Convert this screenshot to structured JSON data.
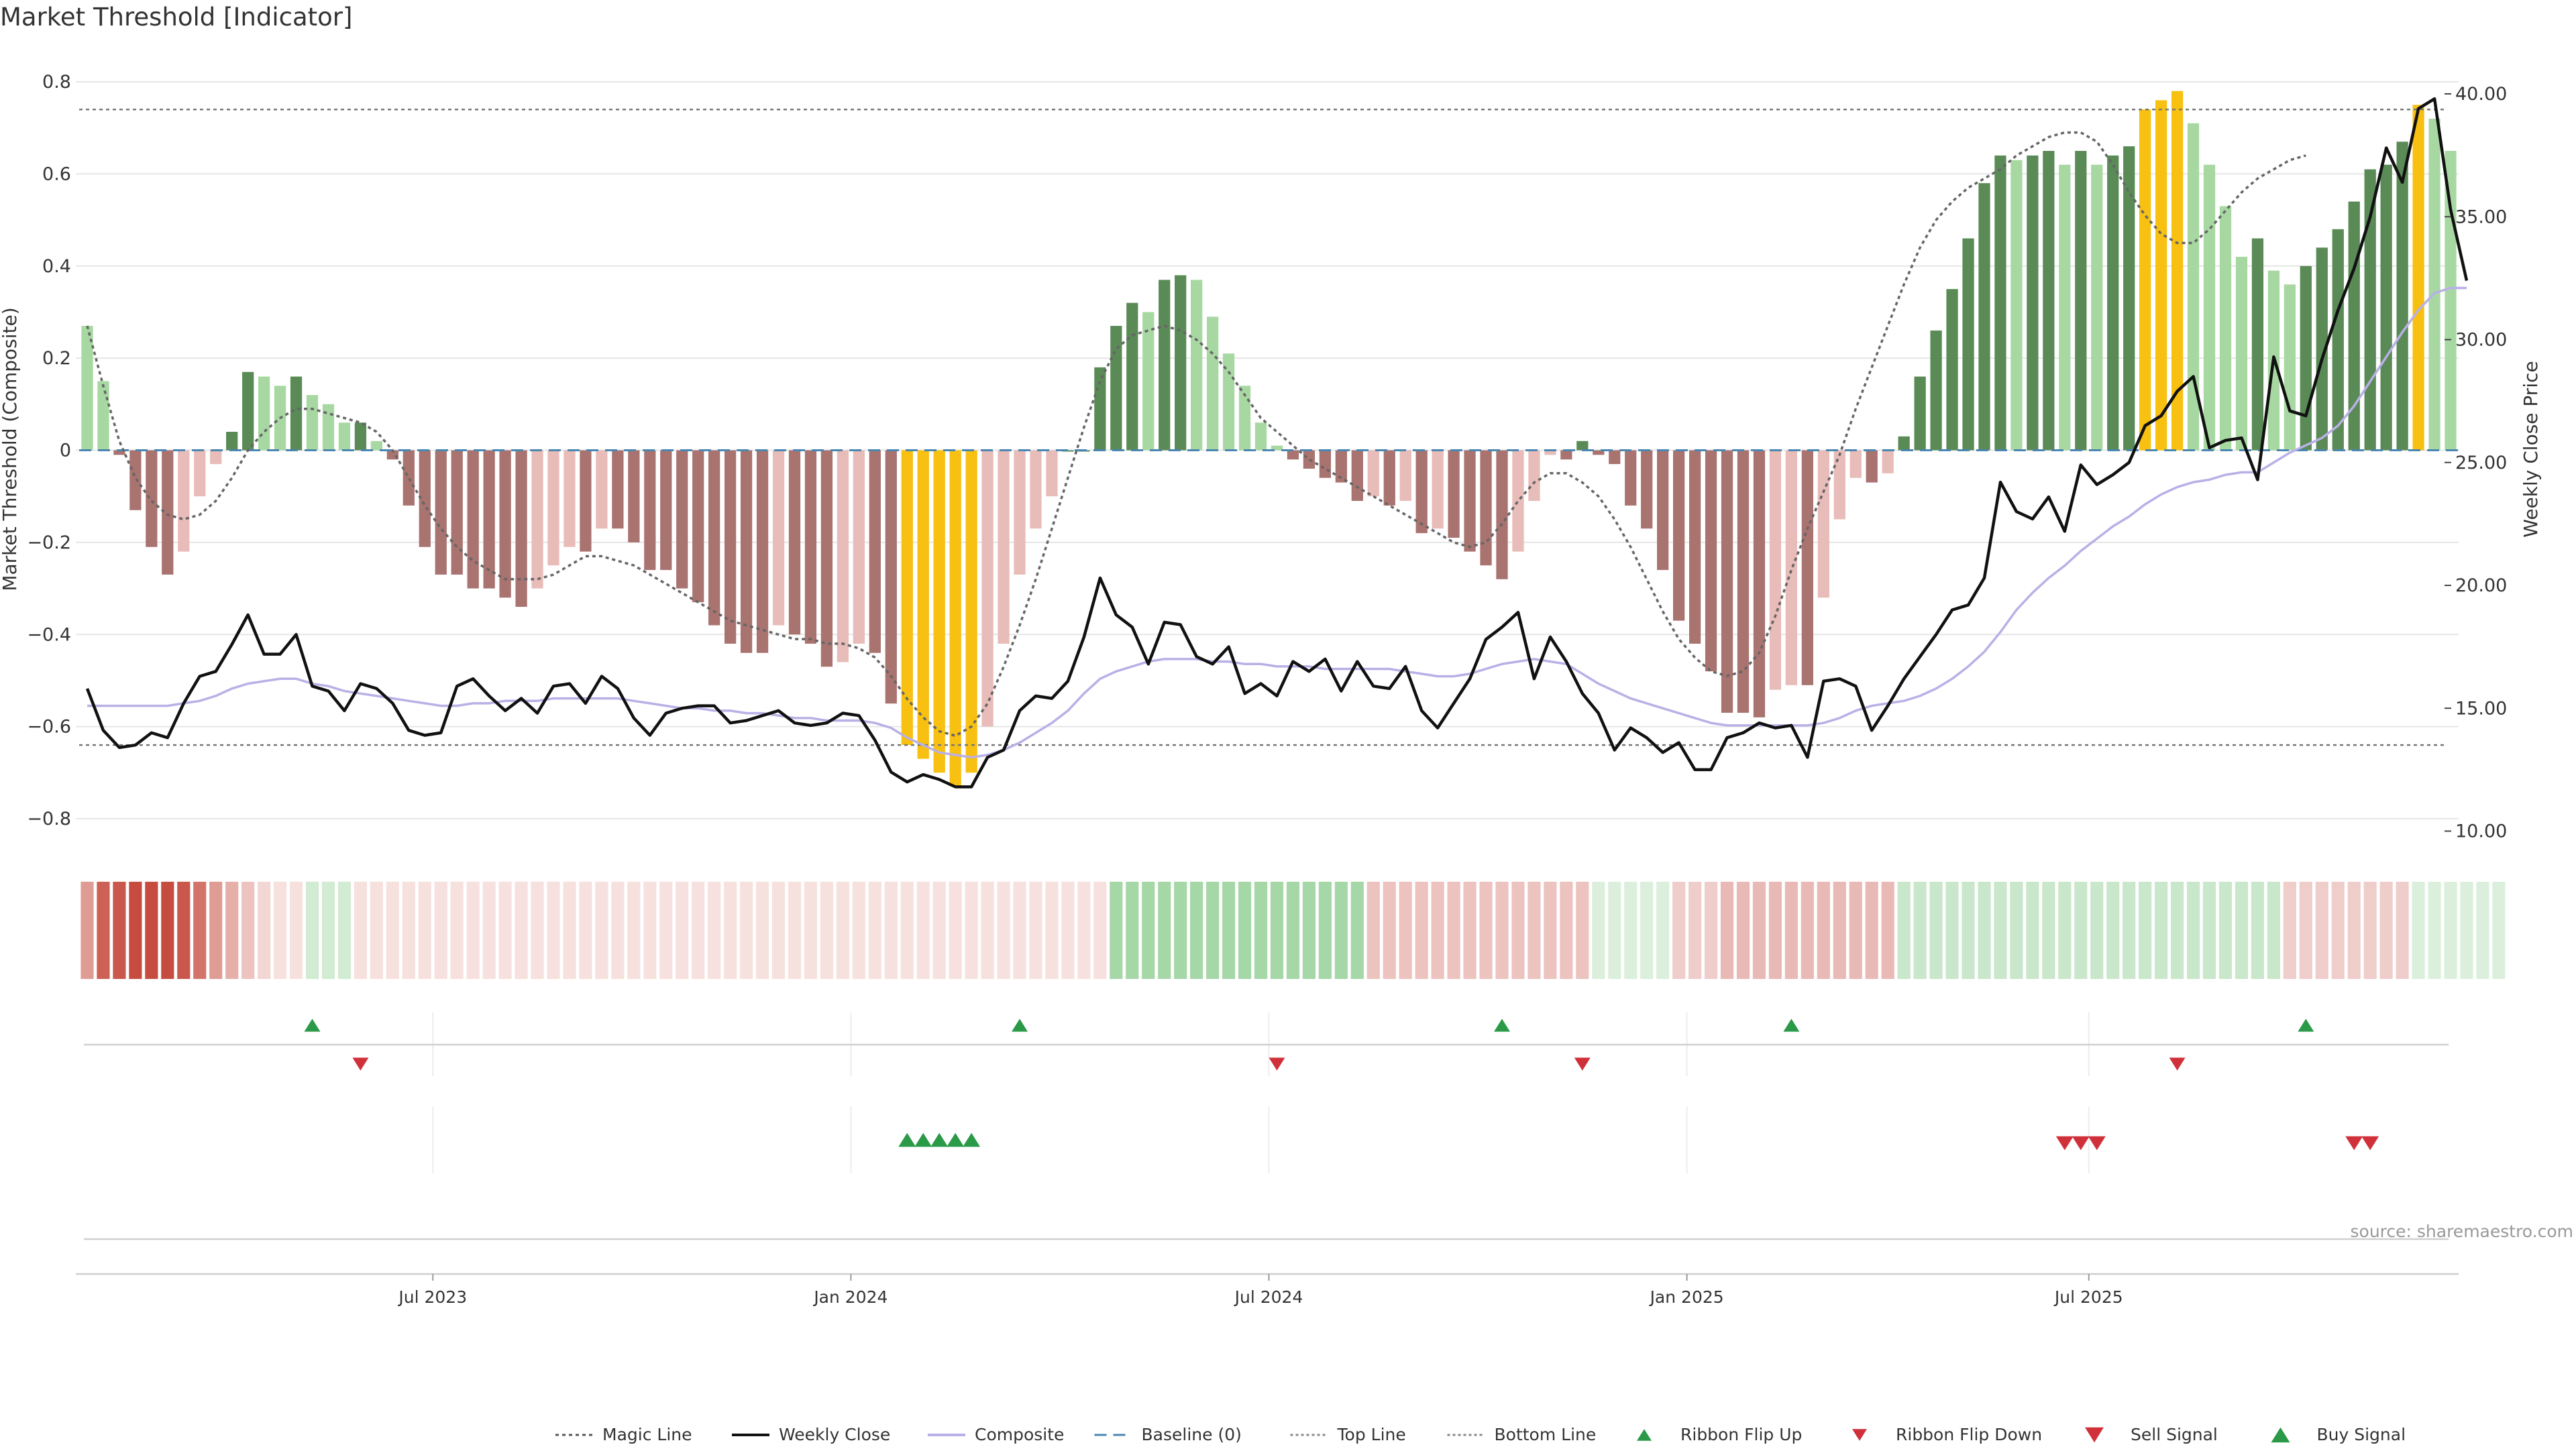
{
  "title": "Market Threshold [Indicator]",
  "source": "source: sharemaestro.com",
  "colors": {
    "bull_dark": "#5a8a56",
    "bull_light": "#a8d8a2",
    "bear_dark": "#a97370",
    "bear_light": "#e8bcb8",
    "extreme": "#f8c010",
    "close": "#111111",
    "composite": "#b9b0e6",
    "magic": "#666666",
    "baseline": "#4a86b0",
    "threshold": "#777777",
    "up": "#2a9a48",
    "down": "#d0303a",
    "grid": "#e6e6e6"
  },
  "legend": [
    {
      "label": "Magic Line",
      "kind": "dotted",
      "color": "#555555"
    },
    {
      "label": "Weekly Close",
      "kind": "solid",
      "color": "#111111"
    },
    {
      "label": "Composite",
      "kind": "solid",
      "color": "#b9b0e6"
    },
    {
      "label": "Baseline (0)",
      "kind": "dashed",
      "color": "#4a86b0"
    },
    {
      "label": "Top Line",
      "kind": "thin-dotted",
      "color": "#888888"
    },
    {
      "label": "Bottom Line",
      "kind": "thin-dotted",
      "color": "#888888"
    },
    {
      "label": "Ribbon Flip Up",
      "kind": "tri-up-small",
      "color": "#2a9a48"
    },
    {
      "label": "Ribbon Flip Down",
      "kind": "tri-down-small",
      "color": "#d0303a"
    },
    {
      "label": "Sell Signal",
      "kind": "tri-down",
      "color": "#d0303a"
    },
    {
      "label": "Buy Signal",
      "kind": "tri-up",
      "color": "#2a9a48"
    }
  ],
  "chart_data": {
    "type": "bar",
    "x_ticks": [
      "Jul 2023",
      "Jan 2024",
      "Jul 2024",
      "Jan 2025",
      "Jul 2025"
    ],
    "x_tick_index": [
      22,
      48,
      74,
      100,
      125
    ],
    "left_axis": {
      "label": "Market Threshold (Composite)",
      "ylim": [
        -0.85,
        0.82
      ],
      "ticks": [
        0.8,
        0.6,
        0.4,
        0.2,
        0,
        -0.2,
        -0.4,
        -0.6,
        -0.8
      ],
      "tick_labels": [
        "0.8",
        "0.6",
        "0.4",
        "0.2",
        "0",
        "−0.2",
        "−0.4",
        "−0.6",
        "−0.8"
      ]
    },
    "right_axis": {
      "label": "Weekly Close Price",
      "ylim": [
        9.5,
        41.0
      ],
      "ticks": [
        40,
        35,
        30,
        25,
        20,
        15,
        10
      ],
      "tick_labels": [
        "40.00",
        "35.00",
        "30.00",
        "25.00",
        "20.00",
        "15.00",
        "10.00"
      ]
    },
    "top_line": 0.74,
    "bottom_line": -0.64,
    "series": [
      {
        "name": "Composite",
        "values": [
          0.27,
          0.15,
          -0.01,
          -0.13,
          -0.21,
          -0.27,
          -0.22,
          -0.1,
          -0.03,
          0.04,
          0.17,
          0.16,
          0.14,
          0.16,
          0.12,
          0.1,
          0.06,
          0.06,
          0.02,
          -0.02,
          -0.12,
          -0.21,
          -0.27,
          -0.27,
          -0.3,
          -0.3,
          -0.32,
          -0.34,
          -0.3,
          -0.25,
          -0.21,
          -0.22,
          -0.17,
          -0.17,
          -0.2,
          -0.26,
          -0.26,
          -0.3,
          -0.33,
          -0.38,
          -0.42,
          -0.44,
          -0.44,
          -0.38,
          -0.4,
          -0.42,
          -0.47,
          -0.46,
          -0.42,
          -0.44,
          -0.55,
          -0.64,
          -0.67,
          -0.7,
          -0.73,
          -0.7,
          -0.6,
          -0.42,
          -0.27,
          -0.17,
          -0.1,
          0.0,
          0.0,
          0.18,
          0.27,
          0.32,
          0.3,
          0.37,
          0.38,
          0.37,
          0.29,
          0.21,
          0.14,
          0.06,
          0.01,
          -0.02,
          -0.04,
          -0.06,
          -0.07,
          -0.11,
          -0.1,
          -0.12,
          -0.11,
          -0.18,
          -0.17,
          -0.19,
          -0.22,
          -0.25,
          -0.28,
          -0.22,
          -0.11,
          -0.01,
          -0.02,
          0.02,
          -0.01,
          -0.03,
          -0.12,
          -0.17,
          -0.26,
          -0.37,
          -0.42,
          -0.48,
          -0.57,
          -0.57,
          -0.58,
          -0.52,
          -0.51,
          -0.51,
          -0.32,
          -0.15,
          -0.06,
          -0.07,
          -0.05,
          0.03,
          0.16,
          0.26,
          0.35,
          0.46,
          0.58,
          0.64,
          0.63,
          0.64,
          0.65,
          0.62,
          0.65,
          0.62,
          0.64,
          0.66,
          0.74,
          0.76,
          0.78,
          0.71,
          0.62,
          0.53,
          0.42,
          0.46,
          0.39,
          0.36,
          0.4,
          0.44,
          0.48,
          0.54,
          0.61,
          0.62,
          0.67,
          0.75,
          0.72,
          0.65
        ]
      },
      {
        "name": "Weekly Close",
        "values": [
          15.8,
          14.1,
          13.4,
          13.5,
          14.0,
          13.8,
          15.2,
          16.3,
          16.5,
          17.6,
          18.8,
          17.2,
          17.2,
          18.0,
          15.9,
          15.7,
          14.9,
          16.0,
          15.8,
          15.2,
          14.1,
          13.9,
          14.0,
          15.9,
          16.2,
          15.5,
          14.9,
          15.4,
          14.8,
          15.9,
          16.0,
          15.2,
          16.3,
          15.8,
          14.6,
          13.9,
          14.8,
          15.0,
          15.1,
          15.1,
          14.4,
          14.5,
          14.7,
          14.9,
          14.4,
          14.3,
          14.4,
          14.8,
          14.7,
          13.7,
          12.4,
          12.0,
          12.3,
          12.1,
          11.8,
          11.8,
          13.0,
          13.3,
          14.9,
          15.5,
          15.4,
          16.1,
          17.9,
          20.3,
          18.8,
          18.3,
          16.8,
          18.5,
          18.4,
          17.1,
          16.8,
          17.5,
          15.6,
          16.0,
          15.5,
          16.9,
          16.5,
          17.0,
          15.7,
          16.9,
          15.9,
          15.8,
          16.7,
          14.9,
          14.2,
          15.2,
          16.2,
          17.8,
          18.3,
          18.9,
          16.2,
          17.9,
          16.9,
          15.6,
          14.8,
          13.3,
          14.2,
          13.8,
          13.2,
          13.6,
          12.5,
          12.5,
          13.8,
          14.0,
          14.4,
          14.2,
          14.3,
          13.0,
          16.1,
          16.2,
          15.9,
          14.1,
          15.1,
          16.2,
          17.1,
          18.0,
          19.0,
          19.2,
          20.3,
          24.2,
          23.0,
          22.7,
          23.6,
          22.2,
          24.9,
          24.1,
          24.5,
          25.0,
          26.5,
          26.9,
          27.9,
          28.5,
          25.6,
          25.9,
          26.0,
          24.3,
          29.3,
          27.1,
          26.9,
          29.2,
          31.2,
          32.9,
          35.0,
          37.8,
          36.4,
          39.4,
          39.8,
          35.3,
          32.4
        ]
      },
      {
        "name": "Composite",
        "values": [
          15.1,
          15.1,
          15.1,
          15.1,
          15.1,
          15.1,
          15.2,
          15.3,
          15.5,
          15.8,
          16.0,
          16.1,
          16.2,
          16.2,
          16.0,
          15.9,
          15.7,
          15.6,
          15.5,
          15.4,
          15.3,
          15.2,
          15.1,
          15.1,
          15.2,
          15.2,
          15.3,
          15.3,
          15.3,
          15.4,
          15.4,
          15.4,
          15.4,
          15.4,
          15.3,
          15.2,
          15.1,
          15.0,
          15.0,
          14.9,
          14.9,
          14.8,
          14.8,
          14.7,
          14.6,
          14.6,
          14.5,
          14.5,
          14.5,
          14.4,
          14.2,
          13.8,
          13.5,
          13.2,
          13.1,
          13.0,
          13.1,
          13.3,
          13.6,
          14.0,
          14.4,
          14.9,
          15.6,
          16.2,
          16.5,
          16.7,
          16.9,
          17.0,
          17.0,
          17.0,
          16.9,
          16.9,
          16.8,
          16.8,
          16.7,
          16.7,
          16.7,
          16.6,
          16.6,
          16.6,
          16.6,
          16.6,
          16.5,
          16.4,
          16.3,
          16.3,
          16.4,
          16.6,
          16.8,
          16.9,
          17.0,
          16.9,
          16.8,
          16.4,
          16.0,
          15.7,
          15.4,
          15.2,
          15.0,
          14.8,
          14.6,
          14.4,
          14.3,
          14.3,
          14.3,
          14.3,
          14.3,
          14.3,
          14.4,
          14.6,
          14.9,
          15.1,
          15.2,
          15.3,
          15.5,
          15.8,
          16.2,
          16.7,
          17.3,
          18.1,
          19.0,
          19.7,
          20.3,
          20.8,
          21.4,
          21.9,
          22.4,
          22.8,
          23.3,
          23.7,
          24.0,
          24.2,
          24.3,
          24.5,
          24.6,
          24.6,
          25.0,
          25.4,
          25.7,
          26.0,
          26.5,
          27.3,
          28.3,
          29.3,
          30.3,
          31.2,
          31.9,
          32.1,
          32.1
        ]
      },
      {
        "name": "Magic Line",
        "values": [
          0.27,
          0.14,
          0.02,
          -0.06,
          -0.11,
          -0.14,
          -0.15,
          -0.14,
          -0.11,
          -0.06,
          0.0,
          0.04,
          0.07,
          0.09,
          0.09,
          0.08,
          0.07,
          0.06,
          0.04,
          0.0,
          -0.06,
          -0.12,
          -0.17,
          -0.21,
          -0.24,
          -0.26,
          -0.28,
          -0.28,
          -0.28,
          -0.27,
          -0.25,
          -0.23,
          -0.23,
          -0.24,
          -0.25,
          -0.27,
          -0.29,
          -0.31,
          -0.33,
          -0.35,
          -0.37,
          -0.38,
          -0.39,
          -0.4,
          -0.41,
          -0.41,
          -0.42,
          -0.42,
          -0.43,
          -0.45,
          -0.49,
          -0.54,
          -0.58,
          -0.61,
          -0.62,
          -0.6,
          -0.55,
          -0.47,
          -0.38,
          -0.28,
          -0.17,
          -0.06,
          0.05,
          0.15,
          0.22,
          0.25,
          0.26,
          0.27,
          0.26,
          0.24,
          0.21,
          0.17,
          0.12,
          0.07,
          0.04,
          0.01,
          -0.02,
          -0.04,
          -0.06,
          -0.08,
          -0.1,
          -0.12,
          -0.14,
          -0.16,
          -0.18,
          -0.2,
          -0.21,
          -0.2,
          -0.16,
          -0.11,
          -0.07,
          -0.05,
          -0.05,
          -0.07,
          -0.1,
          -0.15,
          -0.21,
          -0.28,
          -0.35,
          -0.41,
          -0.45,
          -0.48,
          -0.49,
          -0.48,
          -0.44,
          -0.36,
          -0.26,
          -0.17,
          -0.09,
          -0.01,
          0.09,
          0.18,
          0.27,
          0.36,
          0.44,
          0.5,
          0.54,
          0.57,
          0.59,
          0.61,
          0.64,
          0.66,
          0.68,
          0.69,
          0.69,
          0.67,
          0.62,
          0.56,
          0.51,
          0.47,
          0.45,
          0.45,
          0.48,
          0.52,
          0.56,
          0.59,
          0.61,
          0.63,
          0.64
        ]
      }
    ],
    "ribbon": [
      0.5,
      0.8,
      0.85,
      0.9,
      0.9,
      0.9,
      0.85,
      0.7,
      0.5,
      0.4,
      0.3,
      0.2,
      0.15,
      0.15,
      0.25,
      0.25,
      0.25,
      0.15,
      0.15,
      0.15,
      0.15,
      0.15,
      0.15,
      0.15,
      0.15,
      0.15,
      0.15,
      0.15,
      0.15,
      0.15,
      0.15,
      0.15,
      0.15,
      0.15,
      0.15,
      0.15,
      0.15,
      0.15,
      0.15,
      0.15,
      0.15,
      0.15,
      0.15,
      0.15,
      0.15,
      0.15,
      0.15,
      0.15,
      0.15,
      0.15,
      0.15,
      0.15,
      0.15,
      0.15,
      0.15,
      0.15,
      0.15,
      0.15,
      0.15,
      0.15,
      0.15,
      0.15,
      0.15,
      0.15,
      -0.5,
      -0.5,
      -0.5,
      -0.5,
      -0.5,
      -0.5,
      -0.5,
      -0.5,
      -0.5,
      -0.5,
      -0.5,
      -0.5,
      -0.5,
      -0.5,
      -0.5,
      -0.5,
      0.3,
      0.3,
      0.3,
      0.3,
      0.3,
      0.3,
      0.3,
      0.3,
      0.3,
      0.3,
      0.3,
      0.3,
      0.3,
      0.3,
      -0.2,
      -0.2,
      -0.2,
      -0.2,
      -0.2,
      0.25,
      0.25,
      0.25,
      0.35,
      0.35,
      0.35,
      0.35,
      0.35,
      0.35,
      0.35,
      0.35,
      0.35,
      0.35,
      0.35,
      -0.3,
      -0.3,
      -0.3,
      -0.3,
      -0.3,
      -0.3,
      -0.3,
      -0.3,
      -0.3,
      -0.3,
      -0.3,
      -0.3,
      -0.3,
      -0.3,
      -0.3,
      -0.3,
      -0.3,
      -0.3,
      -0.3,
      -0.3,
      -0.3,
      -0.3,
      -0.3,
      -0.3,
      0.25,
      0.25,
      0.25,
      0.25,
      0.25,
      0.25,
      0.25,
      0.25,
      -0.2,
      -0.2,
      -0.2,
      -0.2,
      -0.2,
      -0.2
    ],
    "ribbon_flip_up": [
      14,
      58,
      88,
      106,
      138
    ],
    "ribbon_flip_down": [
      17,
      74,
      93,
      130
    ],
    "buy_signals": [
      51,
      52,
      53,
      54,
      55
    ],
    "sell_signals": [
      123,
      124,
      125,
      141,
      142
    ]
  }
}
